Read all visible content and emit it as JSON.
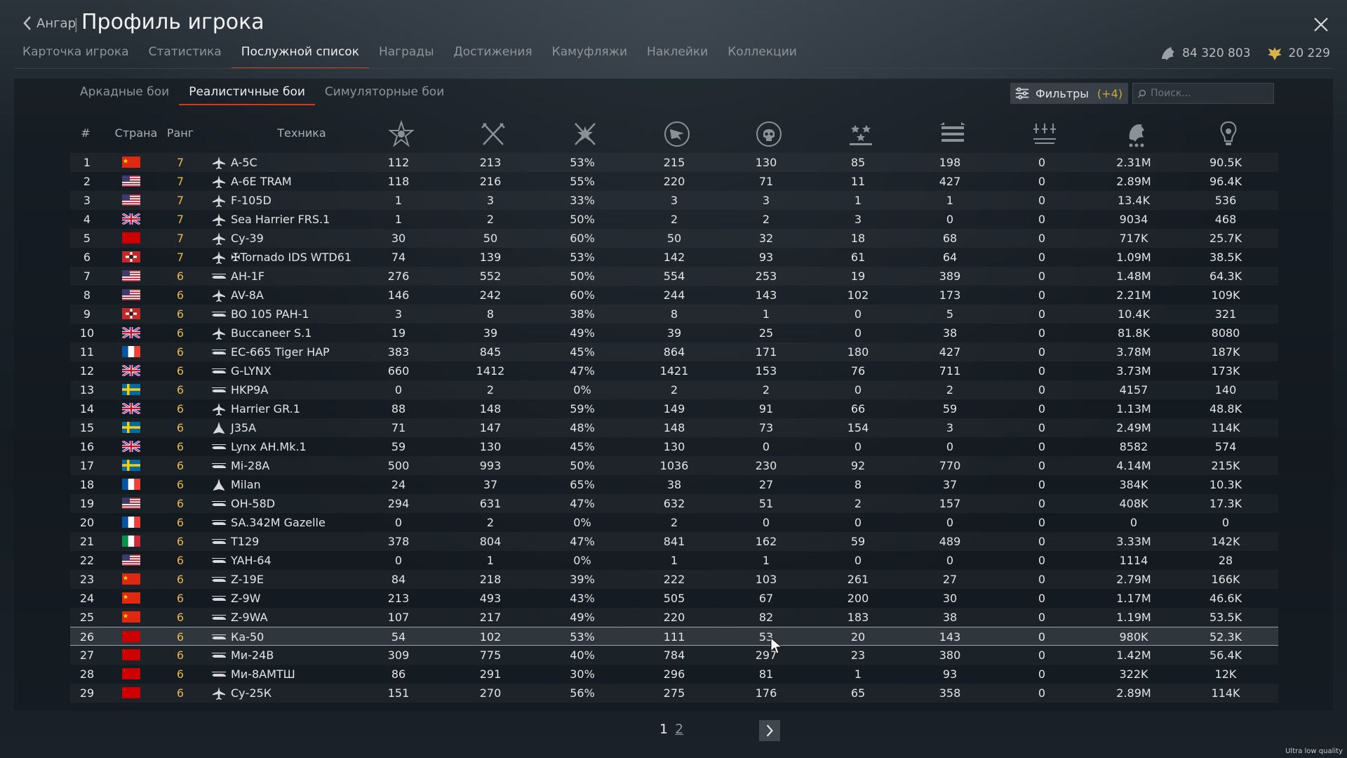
{
  "header": {
    "back_label": "Ангар",
    "separator": "|",
    "title": "Профиль игрока"
  },
  "tabs": [
    "Карточка игрока",
    "Статистика",
    "Послужной список",
    "Награды",
    "Достижения",
    "Камуфляжи",
    "Наклейки",
    "Коллекции"
  ],
  "active_tab": "Послужной список",
  "currency": {
    "silver": "84 320 803",
    "gold": "20 229"
  },
  "subtabs": [
    "Аркадные бои",
    "Реалистичные бои",
    "Симуляторные бои"
  ],
  "active_subtab": "Реалистичные бои",
  "filters": {
    "label": "Фильтры",
    "count": "(+4)"
  },
  "search": {
    "placeholder": "Поиск..."
  },
  "table": {
    "headers": {
      "num": "#",
      "country": "Страна",
      "rank": "Ранг",
      "vehicle": "Техника"
    },
    "stat_icons": [
      "battles-icon",
      "victories-icon",
      "win-rate-icon",
      "respawns-icon",
      "deaths-icon",
      "air-kills-icon",
      "ground-kills-icon",
      "naval-kills-icon",
      "activity-icon",
      "research-icon"
    ],
    "rows": [
      {
        "n": "1",
        "flag": "china",
        "rank": "7",
        "type": "jet",
        "name": "A-5C",
        "v": [
          "112",
          "213",
          "53%",
          "215",
          "130",
          "85",
          "198",
          "0",
          "2.31M",
          "90.5K"
        ]
      },
      {
        "n": "2",
        "flag": "usa",
        "rank": "7",
        "type": "jet",
        "name": "A-6E TRAM",
        "v": [
          "118",
          "216",
          "55%",
          "220",
          "71",
          "11",
          "427",
          "0",
          "2.89M",
          "96.4K"
        ]
      },
      {
        "n": "3",
        "flag": "usa",
        "rank": "7",
        "type": "jet",
        "name": "F-105D",
        "v": [
          "1",
          "3",
          "33%",
          "3",
          "3",
          "1",
          "1",
          "0",
          "13.4K",
          "536"
        ]
      },
      {
        "n": "4",
        "flag": "uk",
        "rank": "7",
        "type": "jet",
        "name": "Sea Harrier FRS.1",
        "v": [
          "1",
          "2",
          "50%",
          "2",
          "2",
          "3",
          "0",
          "0",
          "9034",
          "468"
        ]
      },
      {
        "n": "5",
        "flag": "ussr",
        "rank": "7",
        "type": "jet",
        "name": "Су-39",
        "v": [
          "30",
          "50",
          "60%",
          "50",
          "32",
          "18",
          "68",
          "0",
          "717K",
          "25.7K"
        ]
      },
      {
        "n": "6",
        "flag": "germany",
        "rank": "7",
        "type": "jet",
        "name": "✠Tornado IDS WTD61",
        "v": [
          "74",
          "139",
          "53%",
          "142",
          "93",
          "61",
          "64",
          "0",
          "1.09M",
          "38.5K"
        ]
      },
      {
        "n": "7",
        "flag": "usa",
        "rank": "6",
        "type": "heli",
        "name": "AH-1F",
        "v": [
          "276",
          "552",
          "50%",
          "554",
          "253",
          "19",
          "389",
          "0",
          "1.48M",
          "64.3K"
        ]
      },
      {
        "n": "8",
        "flag": "usa",
        "rank": "6",
        "type": "jet",
        "name": "AV-8A",
        "v": [
          "146",
          "242",
          "60%",
          "244",
          "143",
          "102",
          "173",
          "0",
          "2.21M",
          "109K"
        ]
      },
      {
        "n": "9",
        "flag": "germany",
        "rank": "6",
        "type": "heli",
        "name": "BO 105 PAH-1",
        "v": [
          "3",
          "8",
          "38%",
          "8",
          "1",
          "0",
          "5",
          "0",
          "10.4K",
          "321"
        ]
      },
      {
        "n": "10",
        "flag": "uk",
        "rank": "6",
        "type": "jet",
        "name": "Buccaneer S.1",
        "v": [
          "19",
          "39",
          "49%",
          "39",
          "25",
          "0",
          "38",
          "0",
          "81.8K",
          "8080"
        ]
      },
      {
        "n": "11",
        "flag": "france",
        "rank": "6",
        "type": "heli",
        "name": "EC-665 Tiger HAP",
        "v": [
          "383",
          "845",
          "45%",
          "864",
          "171",
          "180",
          "427",
          "0",
          "3.78M",
          "187K"
        ]
      },
      {
        "n": "12",
        "flag": "uk",
        "rank": "6",
        "type": "heli",
        "name": "G-LYNX",
        "v": [
          "660",
          "1412",
          "47%",
          "1421",
          "153",
          "76",
          "711",
          "0",
          "3.73M",
          "173K"
        ]
      },
      {
        "n": "13",
        "flag": "sweden",
        "rank": "6",
        "type": "heli",
        "name": "HKP9A",
        "v": [
          "0",
          "2",
          "0%",
          "2",
          "2",
          "0",
          "2",
          "0",
          "4157",
          "140"
        ]
      },
      {
        "n": "14",
        "flag": "uk",
        "rank": "6",
        "type": "jet",
        "name": "Harrier GR.1",
        "v": [
          "88",
          "148",
          "59%",
          "149",
          "91",
          "66",
          "59",
          "0",
          "1.13M",
          "48.8K"
        ]
      },
      {
        "n": "15",
        "flag": "sweden",
        "rank": "6",
        "type": "delta",
        "name": "J35A",
        "v": [
          "71",
          "147",
          "48%",
          "148",
          "73",
          "154",
          "3",
          "0",
          "2.49M",
          "114K"
        ]
      },
      {
        "n": "16",
        "flag": "uk",
        "rank": "6",
        "type": "heli",
        "name": "Lynx AH.Mk.1",
        "v": [
          "59",
          "130",
          "45%",
          "130",
          "0",
          "0",
          "0",
          "0",
          "8582",
          "574"
        ]
      },
      {
        "n": "17",
        "flag": "sweden",
        "rank": "6",
        "type": "heli",
        "name": "Mi-28A",
        "v": [
          "500",
          "993",
          "50%",
          "1036",
          "230",
          "92",
          "770",
          "0",
          "4.14M",
          "215K"
        ]
      },
      {
        "n": "18",
        "flag": "france",
        "rank": "6",
        "type": "delta",
        "name": "Milan",
        "v": [
          "24",
          "37",
          "65%",
          "38",
          "27",
          "8",
          "37",
          "0",
          "384K",
          "10.3K"
        ]
      },
      {
        "n": "19",
        "flag": "usa",
        "rank": "6",
        "type": "heli",
        "name": "OH-58D",
        "v": [
          "294",
          "631",
          "47%",
          "632",
          "51",
          "2",
          "157",
          "0",
          "408K",
          "17.3K"
        ]
      },
      {
        "n": "20",
        "flag": "france",
        "rank": "6",
        "type": "heli",
        "name": "SA.342M Gazelle",
        "v": [
          "0",
          "2",
          "0%",
          "2",
          "0",
          "0",
          "0",
          "0",
          "0",
          "0"
        ]
      },
      {
        "n": "21",
        "flag": "italy",
        "rank": "6",
        "type": "heli",
        "name": "T129",
        "v": [
          "378",
          "804",
          "47%",
          "841",
          "162",
          "59",
          "489",
          "0",
          "3.33M",
          "142K"
        ]
      },
      {
        "n": "22",
        "flag": "usa",
        "rank": "6",
        "type": "heli",
        "name": "YAH-64",
        "v": [
          "0",
          "1",
          "0%",
          "1",
          "1",
          "0",
          "0",
          "0",
          "1114",
          "28"
        ]
      },
      {
        "n": "23",
        "flag": "china",
        "rank": "6",
        "type": "heli",
        "name": "Z-19E",
        "v": [
          "84",
          "218",
          "39%",
          "222",
          "103",
          "261",
          "27",
          "0",
          "2.79M",
          "166K"
        ]
      },
      {
        "n": "24",
        "flag": "china",
        "rank": "6",
        "type": "heli",
        "name": "Z-9W",
        "v": [
          "213",
          "493",
          "43%",
          "505",
          "67",
          "200",
          "30",
          "0",
          "1.17M",
          "46.6K"
        ]
      },
      {
        "n": "25",
        "flag": "china",
        "rank": "6",
        "type": "heli",
        "name": "Z-9WA",
        "v": [
          "107",
          "217",
          "49%",
          "220",
          "82",
          "183",
          "38",
          "0",
          "1.19M",
          "53.5K"
        ]
      },
      {
        "n": "26",
        "flag": "ussr",
        "rank": "6",
        "type": "heli",
        "name": "Ка-50",
        "v": [
          "54",
          "102",
          "53%",
          "111",
          "53",
          "20",
          "143",
          "0",
          "980K",
          "52.3K"
        ],
        "selected": true
      },
      {
        "n": "27",
        "flag": "ussr",
        "rank": "6",
        "type": "heli",
        "name": "Ми-24В",
        "v": [
          "309",
          "775",
          "40%",
          "784",
          "297",
          "23",
          "380",
          "0",
          "1.42M",
          "56.4K"
        ]
      },
      {
        "n": "28",
        "flag": "ussr",
        "rank": "6",
        "type": "heli",
        "name": "Ми-8АМТШ",
        "v": [
          "86",
          "291",
          "30%",
          "296",
          "81",
          "1",
          "93",
          "0",
          "322K",
          "12K"
        ]
      },
      {
        "n": "29",
        "flag": "ussr",
        "rank": "6",
        "type": "jet",
        "name": "Су-25К",
        "v": [
          "151",
          "270",
          "56%",
          "275",
          "176",
          "65",
          "358",
          "0",
          "2.89M",
          "114K"
        ]
      }
    ]
  },
  "pagination": {
    "pages": [
      "1",
      "2"
    ],
    "current": "1"
  },
  "footer": {
    "quality_label": "Ultra low quality"
  },
  "colors": {
    "accent": "#c0451d",
    "rank": "#e6b94a",
    "background": "#141b22"
  }
}
